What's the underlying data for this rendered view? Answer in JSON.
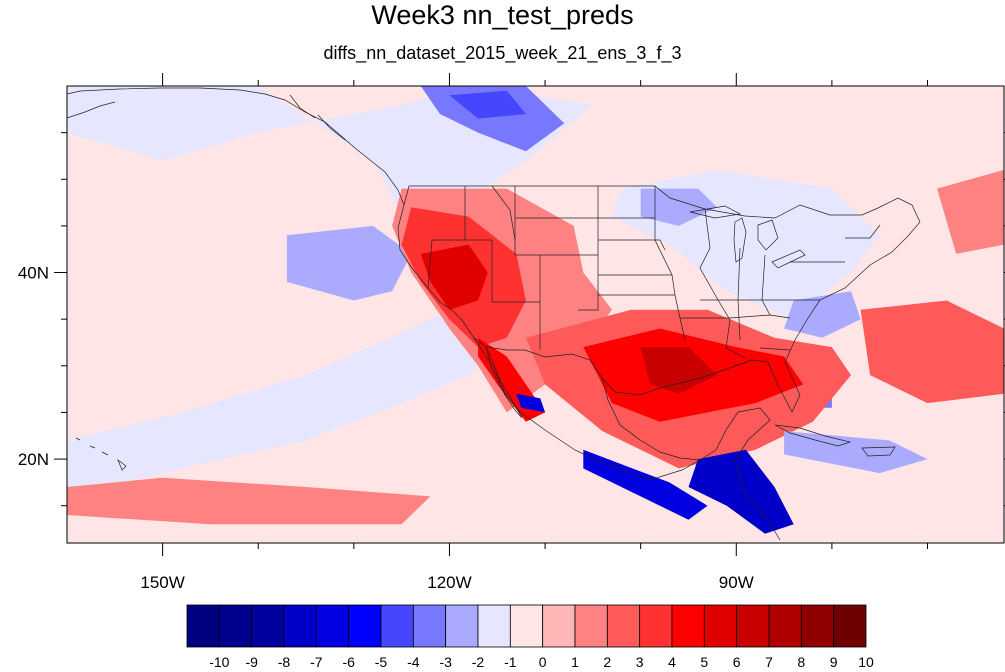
{
  "title": "Week3 nn_test_preds",
  "subtitle": "diffs_nn_dataset_2015_week_21_ens_3_f_3",
  "map": {
    "type": "filled-contour-map",
    "lon_range": [
      -160,
      -62
    ],
    "lat_range": [
      11,
      60
    ],
    "x_ticks": [
      {
        "lon": -150,
        "label": "150W"
      },
      {
        "lon": -120,
        "label": "120W"
      },
      {
        "lon": -90,
        "label": "90W"
      }
    ],
    "y_ticks": [
      {
        "lat": 40,
        "label": "40N"
      },
      {
        "lat": 20,
        "label": "20N"
      }
    ],
    "x_minor": [
      -140,
      -130,
      -110,
      -100,
      -80,
      -70
    ],
    "y_minor": [
      15,
      25,
      30,
      35,
      45,
      50,
      55
    ],
    "background_color": "#ffe5e5",
    "features": [
      {
        "name": "pacific-negative-band",
        "value": -1,
        "pts": [
          [
            -160,
            16
          ],
          [
            -148,
            19
          ],
          [
            -135,
            22
          ],
          [
            -125,
            26
          ],
          [
            -118,
            29
          ],
          [
            -114,
            34
          ],
          [
            -116,
            38
          ],
          [
            -124,
            34
          ],
          [
            -135,
            29
          ],
          [
            -148,
            25
          ],
          [
            -160,
            22
          ]
        ]
      },
      {
        "name": "north-pacific-negative",
        "value": -1,
        "pts": [
          [
            -155,
            60
          ],
          [
            -140,
            60
          ],
          [
            -128,
            52
          ],
          [
            -125,
            46
          ],
          [
            -118,
            48
          ],
          [
            -112,
            52
          ],
          [
            -105,
            58
          ],
          [
            -118,
            60
          ],
          [
            -125,
            58
          ],
          [
            -140,
            55
          ],
          [
            -150,
            52
          ],
          [
            -160,
            55
          ],
          [
            -160,
            60
          ]
        ]
      },
      {
        "name": "offshore-pacific-negative",
        "value": -2,
        "pts": [
          [
            -137,
            44
          ],
          [
            -128,
            45
          ],
          [
            -124,
            42
          ],
          [
            -126,
            38
          ],
          [
            -130,
            37
          ],
          [
            -137,
            39
          ]
        ]
      },
      {
        "name": "alaska-negative",
        "value": -3,
        "pts": [
          [
            -123,
            60
          ],
          [
            -112,
            60
          ],
          [
            -108,
            56
          ],
          [
            -112,
            53
          ],
          [
            -117,
            55
          ],
          [
            -121,
            57
          ]
        ]
      },
      {
        "name": "alaska-negative-core",
        "value": -4,
        "pts": [
          [
            -120,
            59
          ],
          [
            -114,
            59.5
          ],
          [
            -112,
            57
          ],
          [
            -117,
            56.5
          ]
        ]
      },
      {
        "name": "great-lakes-negative",
        "value": -1,
        "pts": [
          [
            -102,
            49
          ],
          [
            -92,
            51
          ],
          [
            -80,
            49
          ],
          [
            -75,
            44
          ],
          [
            -78,
            40
          ],
          [
            -84,
            35
          ],
          [
            -91,
            38
          ],
          [
            -97,
            43
          ],
          [
            -103,
            46
          ]
        ]
      },
      {
        "name": "northern-plains-negative",
        "value": -2,
        "pts": [
          [
            -100,
            49
          ],
          [
            -94,
            49
          ],
          [
            -92,
            47
          ],
          [
            -96,
            45
          ],
          [
            -100,
            46
          ]
        ]
      },
      {
        "name": "carolina-negative",
        "value": -2,
        "pts": [
          [
            -84,
            37
          ],
          [
            -78,
            38
          ],
          [
            -77,
            35
          ],
          [
            -81,
            33
          ],
          [
            -85,
            34
          ]
        ]
      },
      {
        "name": "florida-negative",
        "value": -3,
        "pts": [
          [
            -83,
            28
          ],
          [
            -80,
            28.5
          ],
          [
            -80,
            25.5
          ],
          [
            -82.5,
            25.5
          ]
        ]
      },
      {
        "name": "west-us-positive",
        "value": 2,
        "pts": [
          [
            -125,
            49
          ],
          [
            -114,
            49
          ],
          [
            -107,
            45
          ],
          [
            -106,
            40
          ],
          [
            -103,
            36
          ],
          [
            -106,
            32
          ],
          [
            -110,
            28
          ],
          [
            -114,
            25
          ],
          [
            -117,
            30
          ],
          [
            -120,
            34
          ],
          [
            -124,
            40
          ],
          [
            -126,
            45
          ]
        ]
      },
      {
        "name": "west-us-positive-strong",
        "value": 4,
        "pts": [
          [
            -124,
            47
          ],
          [
            -118,
            46
          ],
          [
            -113,
            42
          ],
          [
            -112,
            37
          ],
          [
            -114,
            33
          ],
          [
            -117,
            32
          ],
          [
            -120,
            35
          ],
          [
            -123,
            39
          ],
          [
            -125,
            43
          ]
        ]
      },
      {
        "name": "california-positive-core",
        "value": 6,
        "pts": [
          [
            -123,
            42
          ],
          [
            -118,
            43
          ],
          [
            -116,
            40
          ],
          [
            -117,
            37
          ],
          [
            -120,
            36
          ],
          [
            -122,
            39
          ]
        ]
      },
      {
        "name": "baja-positive",
        "value": 5,
        "pts": [
          [
            -117,
            33
          ],
          [
            -114,
            31
          ],
          [
            -112,
            28
          ],
          [
            -110,
            25
          ],
          [
            -112,
            24
          ],
          [
            -115,
            28
          ],
          [
            -117,
            31
          ]
        ]
      },
      {
        "name": "south-us-positive",
        "value": 3,
        "pts": [
          [
            -112,
            33
          ],
          [
            -101,
            36
          ],
          [
            -93,
            36
          ],
          [
            -86,
            33
          ],
          [
            -80,
            32
          ],
          [
            -78,
            29
          ],
          [
            -82,
            24
          ],
          [
            -88,
            21
          ],
          [
            -96,
            19
          ],
          [
            -104,
            23
          ],
          [
            -110,
            28
          ]
        ]
      },
      {
        "name": "texas-positive-strong",
        "value": 5,
        "pts": [
          [
            -106,
            32
          ],
          [
            -98,
            34
          ],
          [
            -90,
            32
          ],
          [
            -85,
            31
          ],
          [
            -83,
            28
          ],
          [
            -88,
            26
          ],
          [
            -93,
            25
          ],
          [
            -98,
            24
          ],
          [
            -103,
            26
          ]
        ]
      },
      {
        "name": "texas-positive-core",
        "value": 7,
        "pts": [
          [
            -100,
            32
          ],
          [
            -95,
            32
          ],
          [
            -92,
            29
          ],
          [
            -96,
            27
          ],
          [
            -99,
            28
          ]
        ]
      },
      {
        "name": "atlantic-positive",
        "value": 3,
        "pts": [
          [
            -77,
            36
          ],
          [
            -68,
            37
          ],
          [
            -62,
            34
          ],
          [
            -62,
            27
          ],
          [
            -70,
            26
          ],
          [
            -76,
            29
          ]
        ]
      },
      {
        "name": "atlantic-positive-2",
        "value": 2,
        "pts": [
          [
            -69,
            49
          ],
          [
            -62,
            51
          ],
          [
            -62,
            43
          ],
          [
            -67,
            42
          ]
        ]
      },
      {
        "name": "mexico-negative-coast",
        "value": -6,
        "pts": [
          [
            -106,
            21
          ],
          [
            -97,
            17.5
          ],
          [
            -93,
            15
          ],
          [
            -95,
            13.5
          ],
          [
            -100,
            16
          ],
          [
            -106,
            19
          ]
        ]
      },
      {
        "name": "central-america-negative",
        "value": -7,
        "pts": [
          [
            -94,
            20
          ],
          [
            -89,
            21
          ],
          [
            -86,
            17
          ],
          [
            -84,
            13
          ],
          [
            -87,
            12
          ],
          [
            -91,
            15
          ],
          [
            -95,
            17
          ]
        ]
      },
      {
        "name": "caribbean-negative",
        "value": -2,
        "pts": [
          [
            -85,
            23
          ],
          [
            -74,
            22
          ],
          [
            -70,
            20
          ],
          [
            -75,
            18.5
          ],
          [
            -85,
            20.5
          ]
        ]
      },
      {
        "name": "south-pacific-positive",
        "value": 2,
        "pts": [
          [
            -160,
            14
          ],
          [
            -145,
            13
          ],
          [
            -125,
            13
          ],
          [
            -122,
            16
          ],
          [
            -135,
            17
          ],
          [
            -150,
            18
          ],
          [
            -160,
            17
          ]
        ]
      },
      {
        "name": "baja-negative-spot",
        "value": -6,
        "pts": [
          [
            -113,
            27
          ],
          [
            -110.5,
            26.5
          ],
          [
            -110,
            25
          ],
          [
            -112.5,
            25.5
          ]
        ]
      }
    ]
  },
  "colorbar": {
    "labels": [
      "-10",
      "-9",
      "-8",
      "-7",
      "-6",
      "-5",
      "-4",
      "-3",
      "-2",
      "-1",
      "0",
      "1",
      "2",
      "3",
      "4",
      "5",
      "6",
      "7",
      "8",
      "9",
      "10"
    ],
    "colors": [
      "#000080",
      "#00008f",
      "#00009f",
      "#0000c8",
      "#0000e0",
      "#0000ff",
      "#4646ff",
      "#7878ff",
      "#aaaaff",
      "#e6e6ff",
      "#ffe6e6",
      "#ffb6b6",
      "#ff8282",
      "#ff5a5a",
      "#ff3232",
      "#ff0000",
      "#e00000",
      "#c80000",
      "#b00000",
      "#900000",
      "#700000"
    ]
  }
}
